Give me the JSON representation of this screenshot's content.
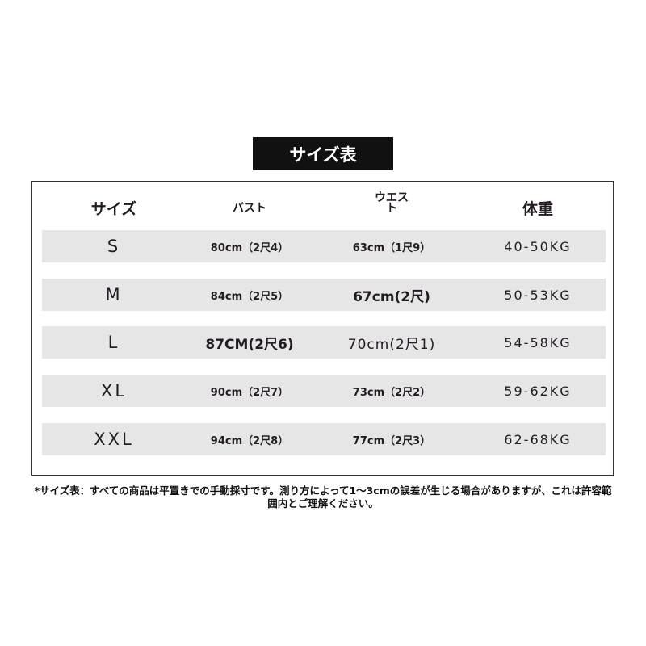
{
  "title": "サイズ表",
  "table": {
    "headers": [
      "サイズ",
      "バスト",
      "ウエスト",
      "体重"
    ],
    "rows": [
      [
        "S",
        "80cm（2尺4）",
        "63cm（1尺9）",
        "40-50KG"
      ],
      [
        "M",
        "84cm（2尺5）",
        "67cm(2尺)",
        "50-53KG"
      ],
      [
        "L",
        "87CM(2尺6)",
        "70cm(2尺1)",
        "54-58KG"
      ],
      [
        "XL",
        "90cm（2尺7）",
        "73cm（2尺2）",
        "59-62KG"
      ],
      [
        "XXL",
        "94cm（2尺8）",
        "77cm（2尺3）",
        "62-68KG"
      ]
    ]
  },
  "note": "*サイズ表：すべての商品は平置きでの手動採寸です。測り方によって1～3cmの誤差が生じる場合がありますが、これは許容範囲内とご理解ください。",
  "colors": {
    "row_bg": "#e6e6e6",
    "title_bg": "#111111",
    "text": "#231a24"
  }
}
